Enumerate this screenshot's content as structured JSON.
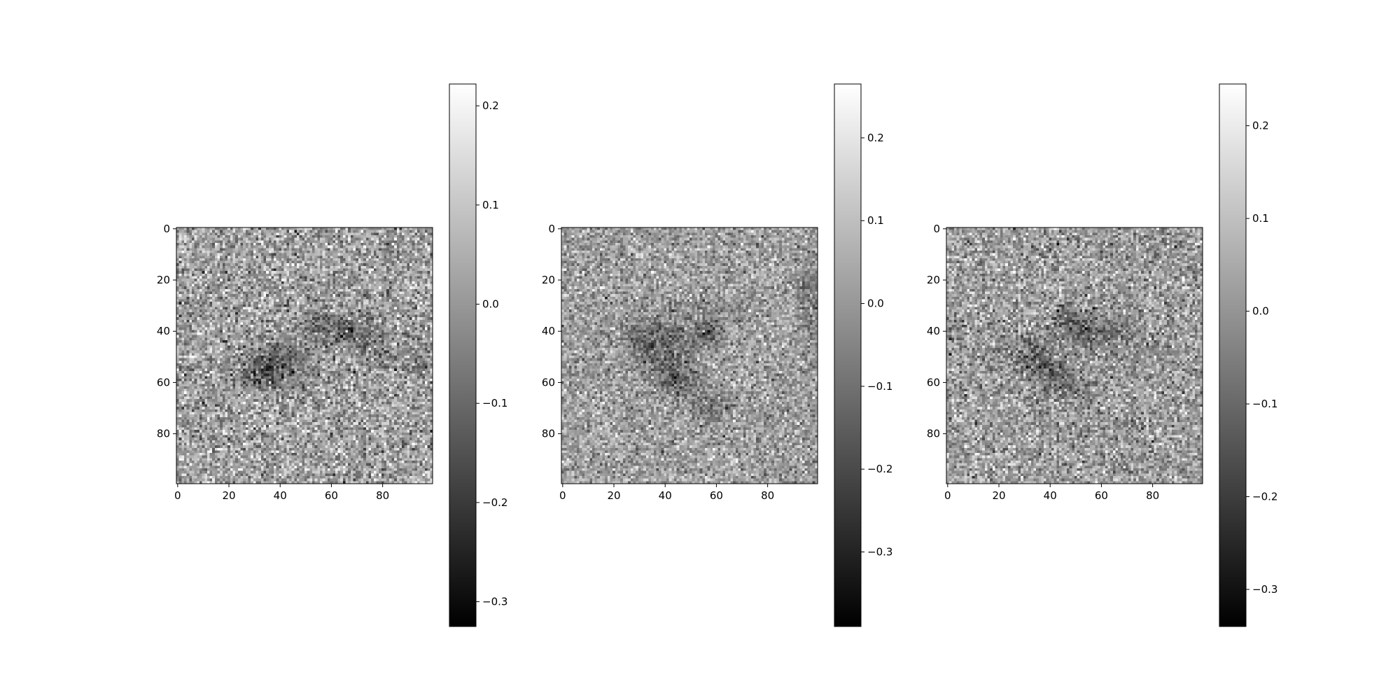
{
  "chart_data": [
    {
      "type": "heatmap",
      "colormap": "gray",
      "grid_size": [
        100,
        100
      ],
      "x_ticks": [
        0,
        20,
        40,
        60,
        80
      ],
      "y_ticks": [
        0,
        20,
        40,
        60,
        80
      ],
      "x_tick_labels": [
        "0",
        "20",
        "40",
        "60",
        "80"
      ],
      "y_tick_labels": [
        "0",
        "20",
        "40",
        "60",
        "80"
      ],
      "vmin": -0.325,
      "vmax": 0.222,
      "colorbar_ticks": [
        0.2,
        0.1,
        0.0,
        -0.1,
        -0.2,
        -0.3
      ],
      "colorbar_tick_labels": [
        "0.2",
        "0.1",
        "0.0",
        "−0.1",
        "−0.2",
        "−0.3"
      ],
      "features": [
        {
          "x": 32,
          "y": 55,
          "sx": 6,
          "sy": 5,
          "amp": -0.16
        },
        {
          "x": 45,
          "y": 52,
          "sx": 8,
          "sy": 6,
          "amp": -0.1
        },
        {
          "x": 55,
          "y": 38,
          "sx": 5,
          "sy": 4,
          "amp": -0.11
        },
        {
          "x": 67,
          "y": 40,
          "sx": 5,
          "sy": 5,
          "amp": -0.12
        },
        {
          "x": 78,
          "y": 45,
          "sx": 5,
          "sy": 6,
          "amp": -0.06
        },
        {
          "x": 95,
          "y": 52,
          "sx": 4,
          "sy": 4,
          "amp": -0.07
        }
      ]
    },
    {
      "type": "heatmap",
      "colormap": "gray",
      "grid_size": [
        100,
        100
      ],
      "x_ticks": [
        0,
        20,
        40,
        60,
        80
      ],
      "y_ticks": [
        0,
        20,
        40,
        60,
        80
      ],
      "x_tick_labels": [
        "0",
        "20",
        "40",
        "60",
        "80"
      ],
      "y_tick_labels": [
        "0",
        "20",
        "40",
        "60",
        "80"
      ],
      "vmin": -0.39,
      "vmax": 0.265,
      "colorbar_ticks": [
        0.2,
        0.1,
        0.0,
        -0.1,
        -0.2,
        -0.3
      ],
      "colorbar_tick_labels": [
        "0.2",
        "0.1",
        "0.0",
        "−0.1",
        "−0.2",
        "−0.3"
      ],
      "features": [
        {
          "x": 33,
          "y": 45,
          "sx": 6,
          "sy": 6,
          "amp": -0.13
        },
        {
          "x": 44,
          "y": 58,
          "sx": 6,
          "sy": 5,
          "amp": -0.17
        },
        {
          "x": 45,
          "y": 42,
          "sx": 7,
          "sy": 6,
          "amp": -0.1
        },
        {
          "x": 57,
          "y": 41,
          "sx": 3,
          "sy": 3,
          "amp": -0.2
        },
        {
          "x": 58,
          "y": 69,
          "sx": 5,
          "sy": 4,
          "amp": -0.12
        },
        {
          "x": 60,
          "y": 30,
          "sx": 9,
          "sy": 4,
          "amp": -0.07
        },
        {
          "x": 96,
          "y": 30,
          "sx": 3,
          "sy": 12,
          "amp": -0.1
        }
      ]
    },
    {
      "type": "heatmap",
      "colormap": "gray",
      "grid_size": [
        100,
        100
      ],
      "x_ticks": [
        0,
        20,
        40,
        60,
        80
      ],
      "y_ticks": [
        0,
        20,
        40,
        60,
        80
      ],
      "x_tick_labels": [
        "0",
        "20",
        "40",
        "60",
        "80"
      ],
      "y_tick_labels": [
        "0",
        "20",
        "40",
        "60",
        "80"
      ],
      "vmin": -0.34,
      "vmax": 0.245,
      "colorbar_ticks": [
        0.2,
        0.1,
        0.0,
        -0.1,
        -0.2,
        -0.3
      ],
      "colorbar_tick_labels": [
        "0.2",
        "0.1",
        "0.0",
        "−0.1",
        "−0.2",
        "−0.3"
      ],
      "features": [
        {
          "x": 32,
          "y": 50,
          "sx": 6,
          "sy": 5,
          "amp": -0.13
        },
        {
          "x": 42,
          "y": 57,
          "sx": 5,
          "sy": 5,
          "amp": -0.11
        },
        {
          "x": 48,
          "y": 36,
          "sx": 4,
          "sy": 4,
          "amp": -0.13
        },
        {
          "x": 55,
          "y": 42,
          "sx": 5,
          "sy": 4,
          "amp": -0.1
        },
        {
          "x": 66,
          "y": 40,
          "sx": 7,
          "sy": 4,
          "amp": -0.08
        },
        {
          "x": 50,
          "y": 62,
          "sx": 5,
          "sy": 4,
          "amp": -0.07
        }
      ]
    }
  ]
}
